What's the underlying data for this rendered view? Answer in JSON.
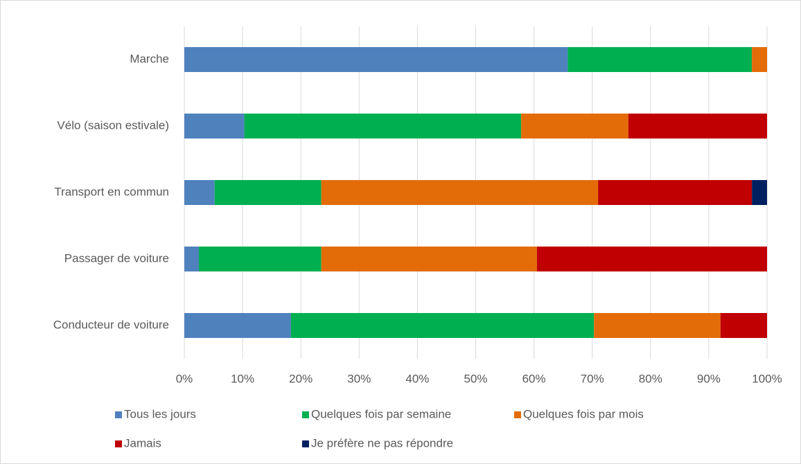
{
  "chart_data": {
    "type": "stacked-barh",
    "categories": [
      "Marche",
      "Vélo (saison estivale)",
      "Transport en commun",
      "Passager de voiture",
      "Conducteur de voiture"
    ],
    "series": [
      {
        "name": "Tous les jours",
        "color": "#4f81bd",
        "values": [
          65.8,
          10.3,
          5.2,
          2.5,
          18.3
        ]
      },
      {
        "name": "Quelques fois par semaine",
        "color": "#00b050",
        "values": [
          31.6,
          47.5,
          18.3,
          21.0,
          52.0
        ]
      },
      {
        "name": "Quelques fois par mois",
        "color": "#e36c09",
        "values": [
          2.6,
          18.4,
          47.5,
          37.0,
          21.7
        ]
      },
      {
        "name": "Jamais",
        "color": "#c00000",
        "values": [
          0,
          23.8,
          26.4,
          39.5,
          8.0
        ]
      },
      {
        "name": "Je préfère ne pas répondre",
        "color": "#002060",
        "values": [
          0,
          0,
          2.6,
          0,
          0
        ]
      }
    ],
    "xlim": [
      0,
      100
    ],
    "xticks": [
      {
        "value": 0,
        "label": "0%"
      },
      {
        "value": 10,
        "label": "10%"
      },
      {
        "value": 20,
        "label": "20%"
      },
      {
        "value": 30,
        "label": "30%"
      },
      {
        "value": 40,
        "label": "40%"
      },
      {
        "value": 50,
        "label": "50%"
      },
      {
        "value": 60,
        "label": "60%"
      },
      {
        "value": 70,
        "label": "70%"
      },
      {
        "value": 80,
        "label": "80%"
      },
      {
        "value": 90,
        "label": "90%"
      },
      {
        "value": 100,
        "label": "100%"
      }
    ],
    "grid": true,
    "legend": "bottom"
  }
}
